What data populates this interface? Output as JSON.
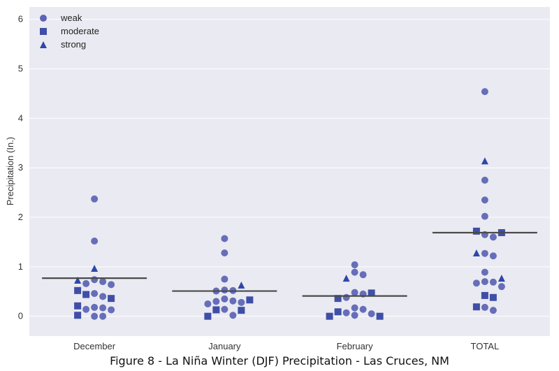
{
  "caption": "Figure 8 - La Niña Winter (DJF) Precipitation - Las Cruces, NM",
  "chart_data": {
    "type": "scatter",
    "subtype": "categorical strip plot with mean line",
    "title": "",
    "xlabel": "",
    "ylabel": "Precipitation (In.)",
    "ylim": [
      -0.4,
      6.25
    ],
    "yticks": [
      0,
      1,
      2,
      3,
      4,
      5,
      6
    ],
    "grid": true,
    "legend_placement": "top-left",
    "categories": [
      "December",
      "January",
      "February",
      "TOTAL"
    ],
    "colors": {
      "background": "#eaeaf2",
      "grid": "#ffffff",
      "mean_line": "#4a4a4a",
      "weak": "#5a63b4",
      "moderate": "#3f4fa6",
      "strong": "#2e47a8"
    },
    "series": [
      {
        "name": "weak",
        "marker": "circle",
        "points": [
          [
            "December",
            2.37
          ],
          [
            "December",
            1.52
          ],
          [
            "December",
            0.74
          ],
          [
            "December",
            0.7
          ],
          [
            "December",
            0.66
          ],
          [
            "December",
            0.64
          ],
          [
            "December",
            0.46
          ],
          [
            "December",
            0.4
          ],
          [
            "December",
            0.18
          ],
          [
            "December",
            0.17
          ],
          [
            "December",
            0.14
          ],
          [
            "December",
            0.13
          ],
          [
            "December",
            0.0
          ],
          [
            "December",
            0.0
          ],
          [
            "January",
            1.57
          ],
          [
            "January",
            1.28
          ],
          [
            "January",
            0.75
          ],
          [
            "January",
            0.53
          ],
          [
            "January",
            0.52
          ],
          [
            "January",
            0.51
          ],
          [
            "January",
            0.35
          ],
          [
            "January",
            0.31
          ],
          [
            "January",
            0.3
          ],
          [
            "January",
            0.28
          ],
          [
            "January",
            0.25
          ],
          [
            "January",
            0.14
          ],
          [
            "January",
            0.02
          ],
          [
            "February",
            1.04
          ],
          [
            "February",
            0.89
          ],
          [
            "February",
            0.84
          ],
          [
            "February",
            0.48
          ],
          [
            "February",
            0.45
          ],
          [
            "February",
            0.38
          ],
          [
            "February",
            0.17
          ],
          [
            "February",
            0.14
          ],
          [
            "February",
            0.07
          ],
          [
            "February",
            0.05
          ],
          [
            "February",
            0.02
          ],
          [
            "TOTAL",
            4.54
          ],
          [
            "TOTAL",
            2.75
          ],
          [
            "TOTAL",
            2.35
          ],
          [
            "TOTAL",
            2.02
          ],
          [
            "TOTAL",
            1.65
          ],
          [
            "TOTAL",
            1.6
          ],
          [
            "TOTAL",
            1.27
          ],
          [
            "TOTAL",
            1.22
          ],
          [
            "TOTAL",
            0.89
          ],
          [
            "TOTAL",
            0.7
          ],
          [
            "TOTAL",
            0.69
          ],
          [
            "TOTAL",
            0.67
          ],
          [
            "TOTAL",
            0.6
          ],
          [
            "TOTAL",
            0.18
          ],
          [
            "TOTAL",
            0.12
          ]
        ]
      },
      {
        "name": "moderate",
        "marker": "square",
        "points": [
          [
            "December",
            0.52
          ],
          [
            "December",
            0.44
          ],
          [
            "December",
            0.36
          ],
          [
            "December",
            0.21
          ],
          [
            "December",
            0.02
          ],
          [
            "January",
            0.33
          ],
          [
            "January",
            0.13
          ],
          [
            "January",
            0.12
          ],
          [
            "January",
            0.0
          ],
          [
            "February",
            0.47
          ],
          [
            "February",
            0.36
          ],
          [
            "February",
            0.09
          ],
          [
            "February",
            0.0
          ],
          [
            "February",
            0.0
          ],
          [
            "TOTAL",
            1.72
          ],
          [
            "TOTAL",
            1.69
          ],
          [
            "TOTAL",
            0.42
          ],
          [
            "TOTAL",
            0.38
          ],
          [
            "TOTAL",
            0.19
          ]
        ]
      },
      {
        "name": "strong",
        "marker": "triangle",
        "points": [
          [
            "December",
            0.97
          ],
          [
            "December",
            0.73
          ],
          [
            "January",
            0.63
          ],
          [
            "February",
            0.77
          ],
          [
            "TOTAL",
            3.14
          ],
          [
            "TOTAL",
            1.28
          ],
          [
            "TOTAL",
            0.77
          ]
        ]
      }
    ],
    "means": [
      0.77,
      0.51,
      0.41,
      1.69
    ]
  }
}
